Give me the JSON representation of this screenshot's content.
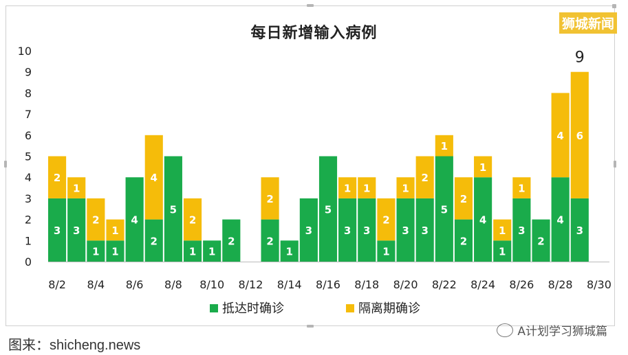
{
  "brand_label": "狮城新闻",
  "watermark_text": "A计划学习狮城篇",
  "source_credit": "图来：shicheng.news",
  "chart_data": {
    "type": "bar",
    "stacked": true,
    "title": "每日新增输入病例",
    "categories": [
      "8/2",
      "8/3",
      "8/4",
      "8/5",
      "8/6",
      "8/7",
      "8/8",
      "8/9",
      "8/10",
      "8/11",
      "8/12",
      "8/13",
      "8/14",
      "8/15",
      "8/16",
      "8/17",
      "8/18",
      "8/19",
      "8/20",
      "8/21",
      "8/22",
      "8/23",
      "8/24",
      "8/25",
      "8/26",
      "8/27",
      "8/28",
      "8/29"
    ],
    "x_tick_labels": [
      "8/2",
      "8/4",
      "8/6",
      "8/8",
      "8/10",
      "8/12",
      "8/14",
      "8/16",
      "8/18",
      "8/20",
      "8/22",
      "8/24",
      "8/26",
      "8/28",
      "8/30"
    ],
    "series": [
      {
        "name": "抵达时确诊",
        "color": "#1aab4b",
        "values": [
          3,
          3,
          1,
          1,
          4,
          2,
          5,
          1,
          1,
          2,
          0,
          2,
          1,
          3,
          5,
          3,
          3,
          1,
          3,
          3,
          5,
          2,
          4,
          1,
          3,
          2,
          4,
          3
        ]
      },
      {
        "name": "隔离期确诊",
        "color": "#f5bc0a",
        "values": [
          2,
          1,
          2,
          1,
          0,
          4,
          0,
          2,
          0,
          0,
          0,
          2,
          0,
          0,
          0,
          1,
          1,
          2,
          1,
          2,
          1,
          2,
          1,
          1,
          1,
          0,
          4,
          6
        ]
      }
    ],
    "total_annotation": {
      "category": "8/29",
      "value": "9"
    },
    "ylim": [
      0,
      10
    ],
    "yticks": [
      0,
      1,
      2,
      3,
      4,
      5,
      6,
      7,
      8,
      9,
      10
    ],
    "grid": false,
    "legend_position": "bottom"
  }
}
